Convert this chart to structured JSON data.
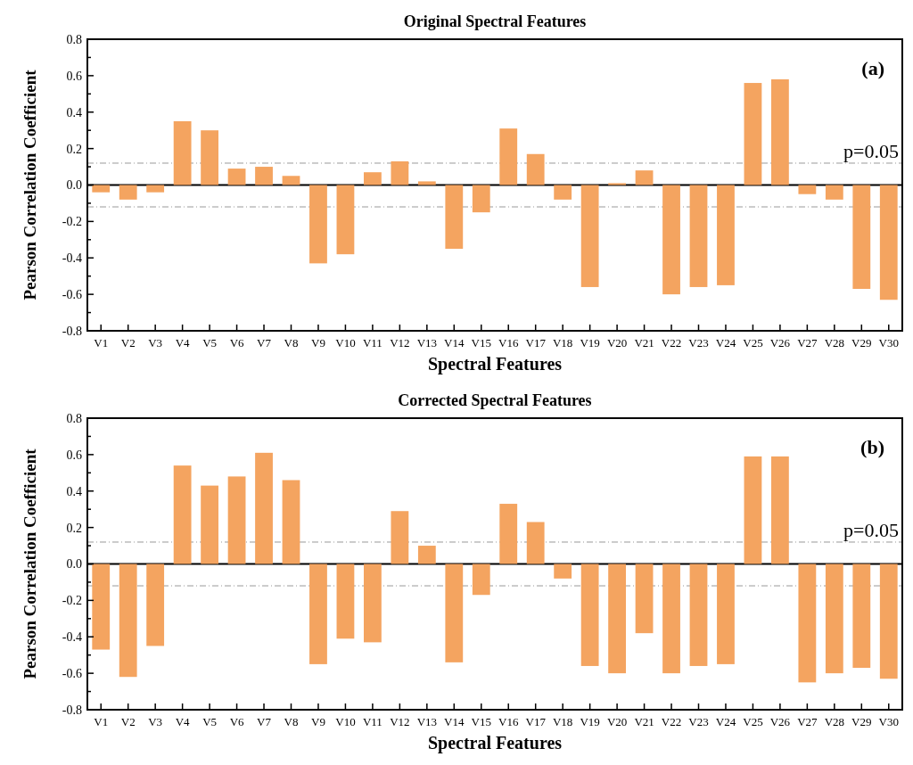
{
  "chart_data": [
    {
      "type": "bar",
      "title": "Original Spectral Features",
      "xlabel": "Spectral Features",
      "ylabel": "Pearson Correlation Coefficient",
      "annotations": [
        "(a)",
        {
          "text": "p=0.05",
          "y": 0.12
        }
      ],
      "categories": [
        "V1",
        "V2",
        "V3",
        "V4",
        "V5",
        "V6",
        "V7",
        "V8",
        "V9",
        "V10",
        "V11",
        "V12",
        "V13",
        "V14",
        "V15",
        "V16",
        "V17",
        "V18",
        "V19",
        "V20",
        "V21",
        "V22",
        "V23",
        "V24",
        "V25",
        "V26",
        "V27",
        "V28",
        "V29",
        "V30"
      ],
      "values": [
        -0.04,
        -0.08,
        -0.04,
        0.35,
        0.3,
        0.09,
        0.1,
        0.05,
        -0.43,
        -0.38,
        0.07,
        0.13,
        0.02,
        -0.35,
        -0.15,
        0.31,
        0.17,
        -0.08,
        -0.56,
        0.01,
        0.08,
        -0.6,
        -0.56,
        -0.55,
        0.56,
        0.58,
        -0.05,
        -0.08,
        -0.57,
        -0.63
      ],
      "color": "#f4a460",
      "ylim": [
        -0.8,
        0.8
      ],
      "yticks": [
        -0.8,
        {
          "value": -0.7,
          "label": null
        },
        -0.6,
        {
          "value": -0.5,
          "label": null
        },
        -0.4,
        {
          "value": -0.3,
          "label": null
        },
        -0.2,
        {
          "value": -0.1,
          "label": null
        },
        {
          "value": 0,
          "label": "0.0"
        },
        {
          "value": 0.1,
          "label": null
        },
        0.2,
        {
          "value": 0.3,
          "label": null
        },
        0.4,
        {
          "value": 0.5,
          "label": null
        },
        0.6,
        {
          "value": 0.7,
          "label": null
        },
        0.8
      ],
      "ref_lines": [
        {
          "axis": "y",
          "value": 0.12,
          "label": null,
          "color": "#999999",
          "line_style": "dashed"
        },
        {
          "axis": "y",
          "value": -0.12,
          "label": null,
          "color": "#999999",
          "line_style": "dashed"
        },
        {
          "axis": "y",
          "value": 0,
          "label": null,
          "color": "#000000",
          "line_style": "solid"
        }
      ],
      "grid": false
    },
    {
      "type": "bar",
      "title": "Corrected Spectral Features",
      "xlabel": "Spectral Features",
      "ylabel": "Pearson Correlation Coefficient",
      "annotations": [
        "(b)",
        {
          "text": "p=0.05",
          "y": 0.12
        }
      ],
      "categories": [
        "V1",
        "V2",
        "V3",
        "V4",
        "V5",
        "V6",
        "V7",
        "V8",
        "V9",
        "V10",
        "V11",
        "V12",
        "V13",
        "V14",
        "V15",
        "V16",
        "V17",
        "V18",
        "V19",
        "V20",
        "V21",
        "V22",
        "V23",
        "V24",
        "V25",
        "V26",
        "V27",
        "V28",
        "V29",
        "V30"
      ],
      "values": [
        -0.47,
        -0.62,
        -0.45,
        0.54,
        0.43,
        0.48,
        0.61,
        0.46,
        -0.55,
        -0.41,
        -0.43,
        0.29,
        0.1,
        -0.54,
        -0.17,
        0.33,
        0.23,
        -0.08,
        -0.56,
        -0.6,
        -0.38,
        -0.6,
        -0.56,
        -0.55,
        0.59,
        0.59,
        -0.65,
        -0.6,
        -0.57,
        -0.63
      ],
      "color": "#f4a460",
      "ylim": [
        -0.8,
        0.8
      ],
      "yticks": [
        -0.8,
        {
          "value": -0.7,
          "label": null
        },
        -0.6,
        {
          "value": -0.5,
          "label": null
        },
        -0.4,
        {
          "value": -0.3,
          "label": null
        },
        -0.2,
        {
          "value": -0.1,
          "label": null
        },
        {
          "value": 0,
          "label": "0.0"
        },
        {
          "value": 0.1,
          "label": null
        },
        0.2,
        {
          "value": 0.3,
          "label": null
        },
        0.4,
        {
          "value": 0.5,
          "label": null
        },
        0.6,
        {
          "value": 0.7,
          "label": null
        },
        0.8
      ],
      "ref_lines": [
        {
          "axis": "y",
          "value": 0.12,
          "label": null,
          "color": "#999999",
          "line_style": "dashed"
        },
        {
          "axis": "y",
          "value": -0.12,
          "label": null,
          "color": "#999999",
          "line_style": "dashed"
        },
        {
          "axis": "y",
          "value": 0,
          "label": null,
          "color": "#000000",
          "line_style": "solid"
        }
      ],
      "grid": false
    }
  ]
}
